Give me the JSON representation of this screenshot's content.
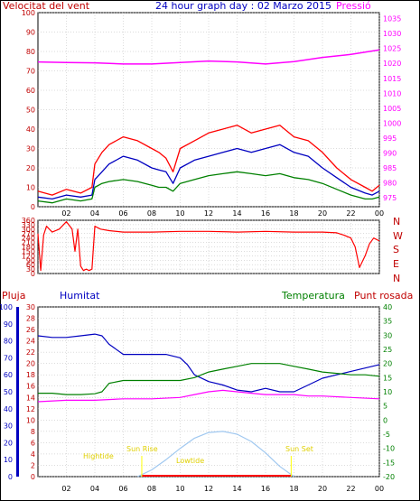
{
  "header": {
    "title": "24 hour graph day : 02 Marzo 2015",
    "left_label": "Velocitat del vent",
    "right_label": "Pressió"
  },
  "colors": {
    "wind": "#ff0000",
    "avg": "#0000c0",
    "gust_green": "#008000",
    "pressure": "#ff00ff",
    "humidity": "#0000c0",
    "temperature": "#008000",
    "dewpoint": "#ff00ff",
    "rain": "#ff0000",
    "solar": "#a0c8f0",
    "sun_markers": "#ffff00",
    "grid": "#b8b8b8"
  },
  "chart_data": [
    {
      "type": "line",
      "id": "wind-pressure",
      "title": "24 hour graph day : 02 Marzo 2015",
      "x_ticks": [
        "02",
        "04",
        "06",
        "08",
        "10",
        "12",
        "14",
        "16",
        "18",
        "20",
        "22",
        "00"
      ],
      "y_left": {
        "label": "Velocitat del vent",
        "lim": [
          0,
          100
        ],
        "ticks": [
          0,
          10,
          20,
          30,
          40,
          50,
          60,
          70,
          80,
          90,
          100
        ]
      },
      "y_right": {
        "label": "Pressió",
        "lim": [
          972,
          1037
        ],
        "ticks": [
          975,
          980,
          985,
          990,
          995,
          1000,
          1005,
          1010,
          1015,
          1020,
          1025,
          1030,
          1035
        ]
      },
      "series": [
        {
          "key": "gust",
          "color": "#ff0000",
          "x": [
            0,
            1,
            2,
            3,
            3.8,
            4,
            4.5,
            5,
            6,
            7,
            8,
            8.5,
            9,
            9.5,
            10,
            11,
            12,
            13,
            14,
            15,
            16,
            17,
            18,
            19,
            20,
            21,
            22,
            23,
            23.5,
            24
          ],
          "values": [
            8,
            6,
            9,
            7,
            10,
            22,
            28,
            32,
            36,
            34,
            30,
            28,
            25,
            18,
            30,
            34,
            38,
            40,
            42,
            38,
            40,
            42,
            36,
            34,
            28,
            20,
            14,
            10,
            8,
            11
          ]
        },
        {
          "key": "avg",
          "color": "#0000c0",
          "x": [
            0,
            1,
            2,
            3,
            3.8,
            4,
            4.5,
            5,
            6,
            7,
            8,
            8.5,
            9,
            9.5,
            10,
            11,
            12,
            13,
            14,
            15,
            16,
            17,
            18,
            19,
            20,
            21,
            22,
            23,
            23.5,
            24
          ],
          "values": [
            5,
            4,
            6,
            5,
            6,
            14,
            18,
            22,
            26,
            24,
            20,
            19,
            18,
            12,
            20,
            24,
            26,
            28,
            30,
            28,
            30,
            32,
            28,
            26,
            20,
            15,
            10,
            7,
            6,
            8
          ]
        },
        {
          "key": "wind_green",
          "color": "#008000",
          "x": [
            0,
            1,
            2,
            3,
            3.8,
            4,
            4.5,
            5,
            6,
            7,
            8,
            8.5,
            9,
            9.5,
            10,
            11,
            12,
            13,
            14,
            15,
            16,
            17,
            18,
            19,
            20,
            21,
            22,
            23,
            23.5,
            24
          ],
          "values": [
            3,
            2,
            4,
            3,
            4,
            10,
            12,
            13,
            14,
            13,
            11,
            10,
            10,
            8,
            12,
            14,
            16,
            17,
            18,
            17,
            16,
            17,
            15,
            14,
            12,
            9,
            6,
            4,
            4,
            5
          ]
        },
        {
          "key": "pressure",
          "color": "#ff00ff",
          "axis": "right",
          "x": [
            0,
            2,
            4,
            6,
            8,
            10,
            12,
            14,
            16,
            18,
            20,
            22,
            24
          ],
          "values": [
            1020.5,
            1020.3,
            1020.2,
            1019.8,
            1019.8,
            1020.3,
            1020.8,
            1020.5,
            1019.8,
            1020.6,
            1022,
            1023,
            1024.5
          ]
        }
      ]
    },
    {
      "type": "line",
      "id": "wind-direction",
      "y_left": {
        "lim": [
          0,
          360
        ],
        "ticks": [
          0,
          30,
          60,
          90,
          120,
          150,
          180,
          210,
          240,
          270,
          300,
          330,
          360
        ]
      },
      "y_right_labels": [
        "N",
        "W",
        "S",
        "E",
        "N"
      ],
      "series": [
        {
          "key": "direction",
          "color": "#ff0000",
          "x": [
            0,
            0.2,
            0.4,
            0.6,
            0.8,
            1,
            1.5,
            2,
            2.4,
            2.6,
            2.8,
            3,
            3.2,
            3.4,
            3.6,
            3.8,
            4,
            4.4,
            5,
            6,
            8,
            10,
            12,
            14,
            16,
            18,
            20,
            21,
            21.5,
            22,
            22.3,
            22.6,
            23,
            23.3,
            23.6,
            24
          ],
          "values": [
            270,
            20,
            260,
            320,
            300,
            280,
            300,
            350,
            300,
            150,
            300,
            50,
            20,
            30,
            20,
            30,
            320,
            300,
            290,
            280,
            280,
            285,
            285,
            280,
            285,
            280,
            280,
            275,
            260,
            240,
            180,
            40,
            120,
            200,
            240,
            220
          ]
        }
      ]
    },
    {
      "type": "line",
      "id": "humidity-temp",
      "labels": {
        "rain": "Pluja",
        "humidity": "Humitat",
        "temperature": "Temperatura",
        "dewpoint": "Punt rosada"
      },
      "x_ticks": [
        "02",
        "04",
        "06",
        "08",
        "10",
        "12",
        "14",
        "16",
        "18",
        "20",
        "22",
        "00"
      ],
      "y_rain": {
        "lim": [
          0,
          30
        ],
        "ticks": [
          0,
          2,
          4,
          6,
          8,
          10,
          12,
          14,
          16,
          18,
          20,
          22,
          24,
          26,
          28,
          30
        ]
      },
      "y_humidity": {
        "lim": [
          0,
          100
        ],
        "ticks": [
          0,
          10,
          20,
          30,
          40,
          50,
          60,
          70,
          80,
          90,
          100
        ]
      },
      "y_temp": {
        "lim": [
          -20,
          40
        ],
        "ticks": [
          -20,
          -15,
          -10,
          -5,
          0,
          5,
          10,
          15,
          20,
          25,
          30,
          35,
          40
        ]
      },
      "annotations": [
        "Sun Rise",
        "Sun Set",
        "Lowtide",
        "Hightide"
      ],
      "series": [
        {
          "key": "humidity",
          "color": "#0000c0",
          "axis": "humidity",
          "x": [
            0,
            1,
            2,
            3,
            4,
            4.5,
            5,
            6,
            7,
            8,
            9,
            10,
            10.5,
            11,
            12,
            13,
            14,
            15,
            16,
            17,
            18,
            19,
            20,
            21,
            22,
            23,
            24
          ],
          "values": [
            83,
            82,
            82,
            83,
            84,
            83,
            78,
            72,
            72,
            72,
            72,
            70,
            66,
            60,
            56,
            54,
            51,
            50,
            52,
            50,
            50,
            54,
            58,
            60,
            62,
            64,
            66
          ]
        },
        {
          "key": "temperature",
          "color": "#008000",
          "axis": "temp",
          "x": [
            0,
            1,
            2,
            3,
            4,
            4.5,
            5,
            6,
            7,
            8,
            9,
            10,
            11,
            12,
            13,
            14,
            15,
            16,
            17,
            18,
            19,
            20,
            21,
            22,
            23,
            24
          ],
          "values": [
            9.5,
            9.5,
            9,
            9,
            9.3,
            10,
            13,
            14,
            14,
            14,
            14,
            14,
            15,
            17,
            18,
            19,
            20,
            20,
            20,
            19,
            18,
            17,
            16.5,
            16,
            16,
            15.5
          ]
        },
        {
          "key": "dewpoint",
          "color": "#ff00ff",
          "axis": "temp",
          "x": [
            0,
            2,
            4,
            6,
            8,
            10,
            11,
            12,
            13,
            14,
            15,
            16,
            17,
            18,
            19,
            20,
            22,
            24
          ],
          "values": [
            6.5,
            7,
            7,
            7.5,
            7.5,
            8,
            9,
            10,
            10.5,
            10,
            9.5,
            9,
            9,
            9,
            8.5,
            8.5,
            8,
            7.5
          ]
        },
        {
          "key": "solar",
          "color": "#a0c8f0",
          "axis": "rain",
          "x": [
            7,
            8,
            9,
            10,
            11,
            12,
            13,
            14,
            15,
            16,
            17,
            18
          ],
          "values": [
            0,
            1.2,
            3,
            5,
            6.8,
            7.8,
            8,
            7.5,
            6.2,
            4.2,
            1.8,
            0
          ]
        }
      ]
    }
  ]
}
